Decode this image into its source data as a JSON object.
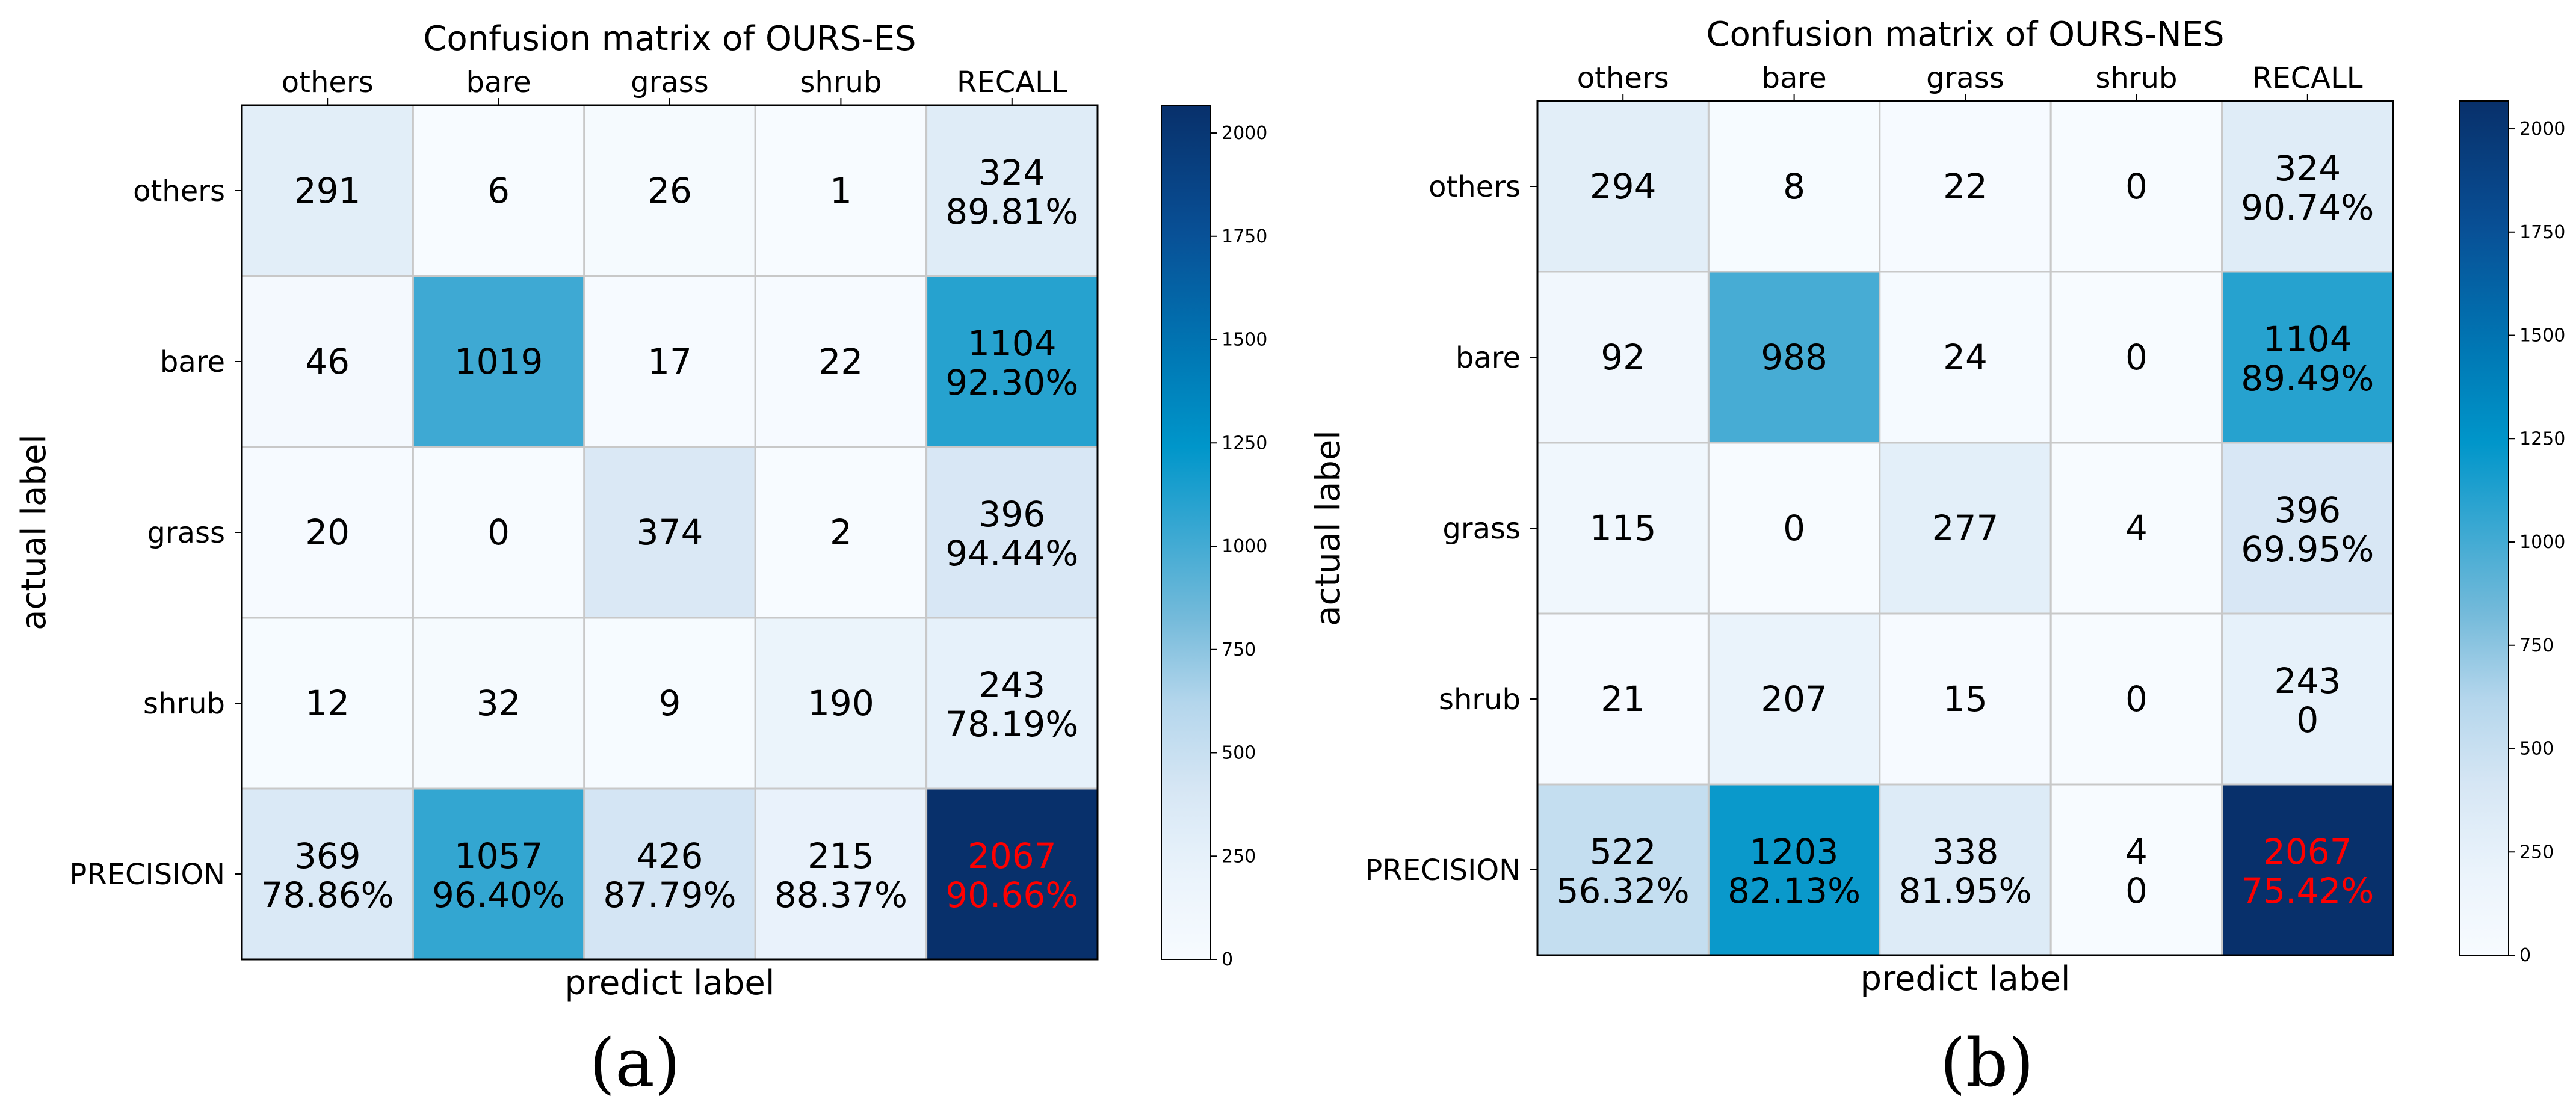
{
  "chart_data": [
    {
      "type": "heatmap",
      "panel_caption": "(a)",
      "title": "Confusion matrix of OURS-ES",
      "xlabel": "predict label",
      "ylabel": "actual label",
      "x_categories": [
        "others",
        "bare",
        "grass",
        "shrub",
        "RECALL"
      ],
      "y_categories": [
        "others",
        "bare",
        "grass",
        "shrub",
        "PRECISION"
      ],
      "values": [
        [
          291,
          6,
          26,
          1,
          324
        ],
        [
          46,
          1019,
          17,
          22,
          1104
        ],
        [
          20,
          0,
          374,
          2,
          396
        ],
        [
          12,
          32,
          9,
          190,
          243
        ],
        [
          369,
          1057,
          426,
          215,
          2067
        ]
      ],
      "cell_labels": [
        [
          "291",
          "6",
          "26",
          "1",
          "324\n89.81%"
        ],
        [
          "46",
          "1019",
          "17",
          "22",
          "1104\n92.30%"
        ],
        [
          "20",
          "0",
          "374",
          "2",
          "396\n94.44%"
        ],
        [
          "12",
          "32",
          "9",
          "190",
          "243\n78.19%"
        ],
        [
          "369\n78.86%",
          "1057\n96.40%",
          "426\n87.79%",
          "215\n88.37%",
          "2067\n90.66%"
        ]
      ],
      "highlight_cell": [
        4,
        4
      ],
      "highlight_color": "#ff0000",
      "colorbar": {
        "min": 0,
        "max": 2067,
        "ticks": [
          0,
          250,
          500,
          750,
          1000,
          1250,
          1500,
          1750,
          2000
        ]
      },
      "colormap": "Blues"
    },
    {
      "type": "heatmap",
      "panel_caption": "(b)",
      "title": "Confusion matrix of OURS-NES",
      "xlabel": "predict label",
      "ylabel": "actual label",
      "x_categories": [
        "others",
        "bare",
        "grass",
        "shrub",
        "RECALL"
      ],
      "y_categories": [
        "others",
        "bare",
        "grass",
        "shrub",
        "PRECISION"
      ],
      "values": [
        [
          294,
          8,
          22,
          0,
          324
        ],
        [
          92,
          988,
          24,
          0,
          1104
        ],
        [
          115,
          0,
          277,
          4,
          396
        ],
        [
          21,
          207,
          15,
          0,
          243
        ],
        [
          522,
          1203,
          338,
          4,
          2067
        ]
      ],
      "cell_labels": [
        [
          "294",
          "8",
          "22",
          "0",
          "324\n90.74%"
        ],
        [
          "92",
          "988",
          "24",
          "0",
          "1104\n89.49%"
        ],
        [
          "115",
          "0",
          "277",
          "4",
          "396\n69.95%"
        ],
        [
          "21",
          "207",
          "15",
          "0",
          "243\n0"
        ],
        [
          "522\n56.32%",
          "1203\n82.13%",
          "338\n81.95%",
          "4\n0",
          "2067\n75.42%"
        ]
      ],
      "highlight_cell": [
        4,
        4
      ],
      "highlight_color": "#ff0000",
      "colorbar": {
        "min": 0,
        "max": 2067,
        "ticks": [
          0,
          250,
          500,
          750,
          1000,
          1250,
          1500,
          1750,
          2000
        ]
      },
      "colormap": "Blues"
    }
  ]
}
